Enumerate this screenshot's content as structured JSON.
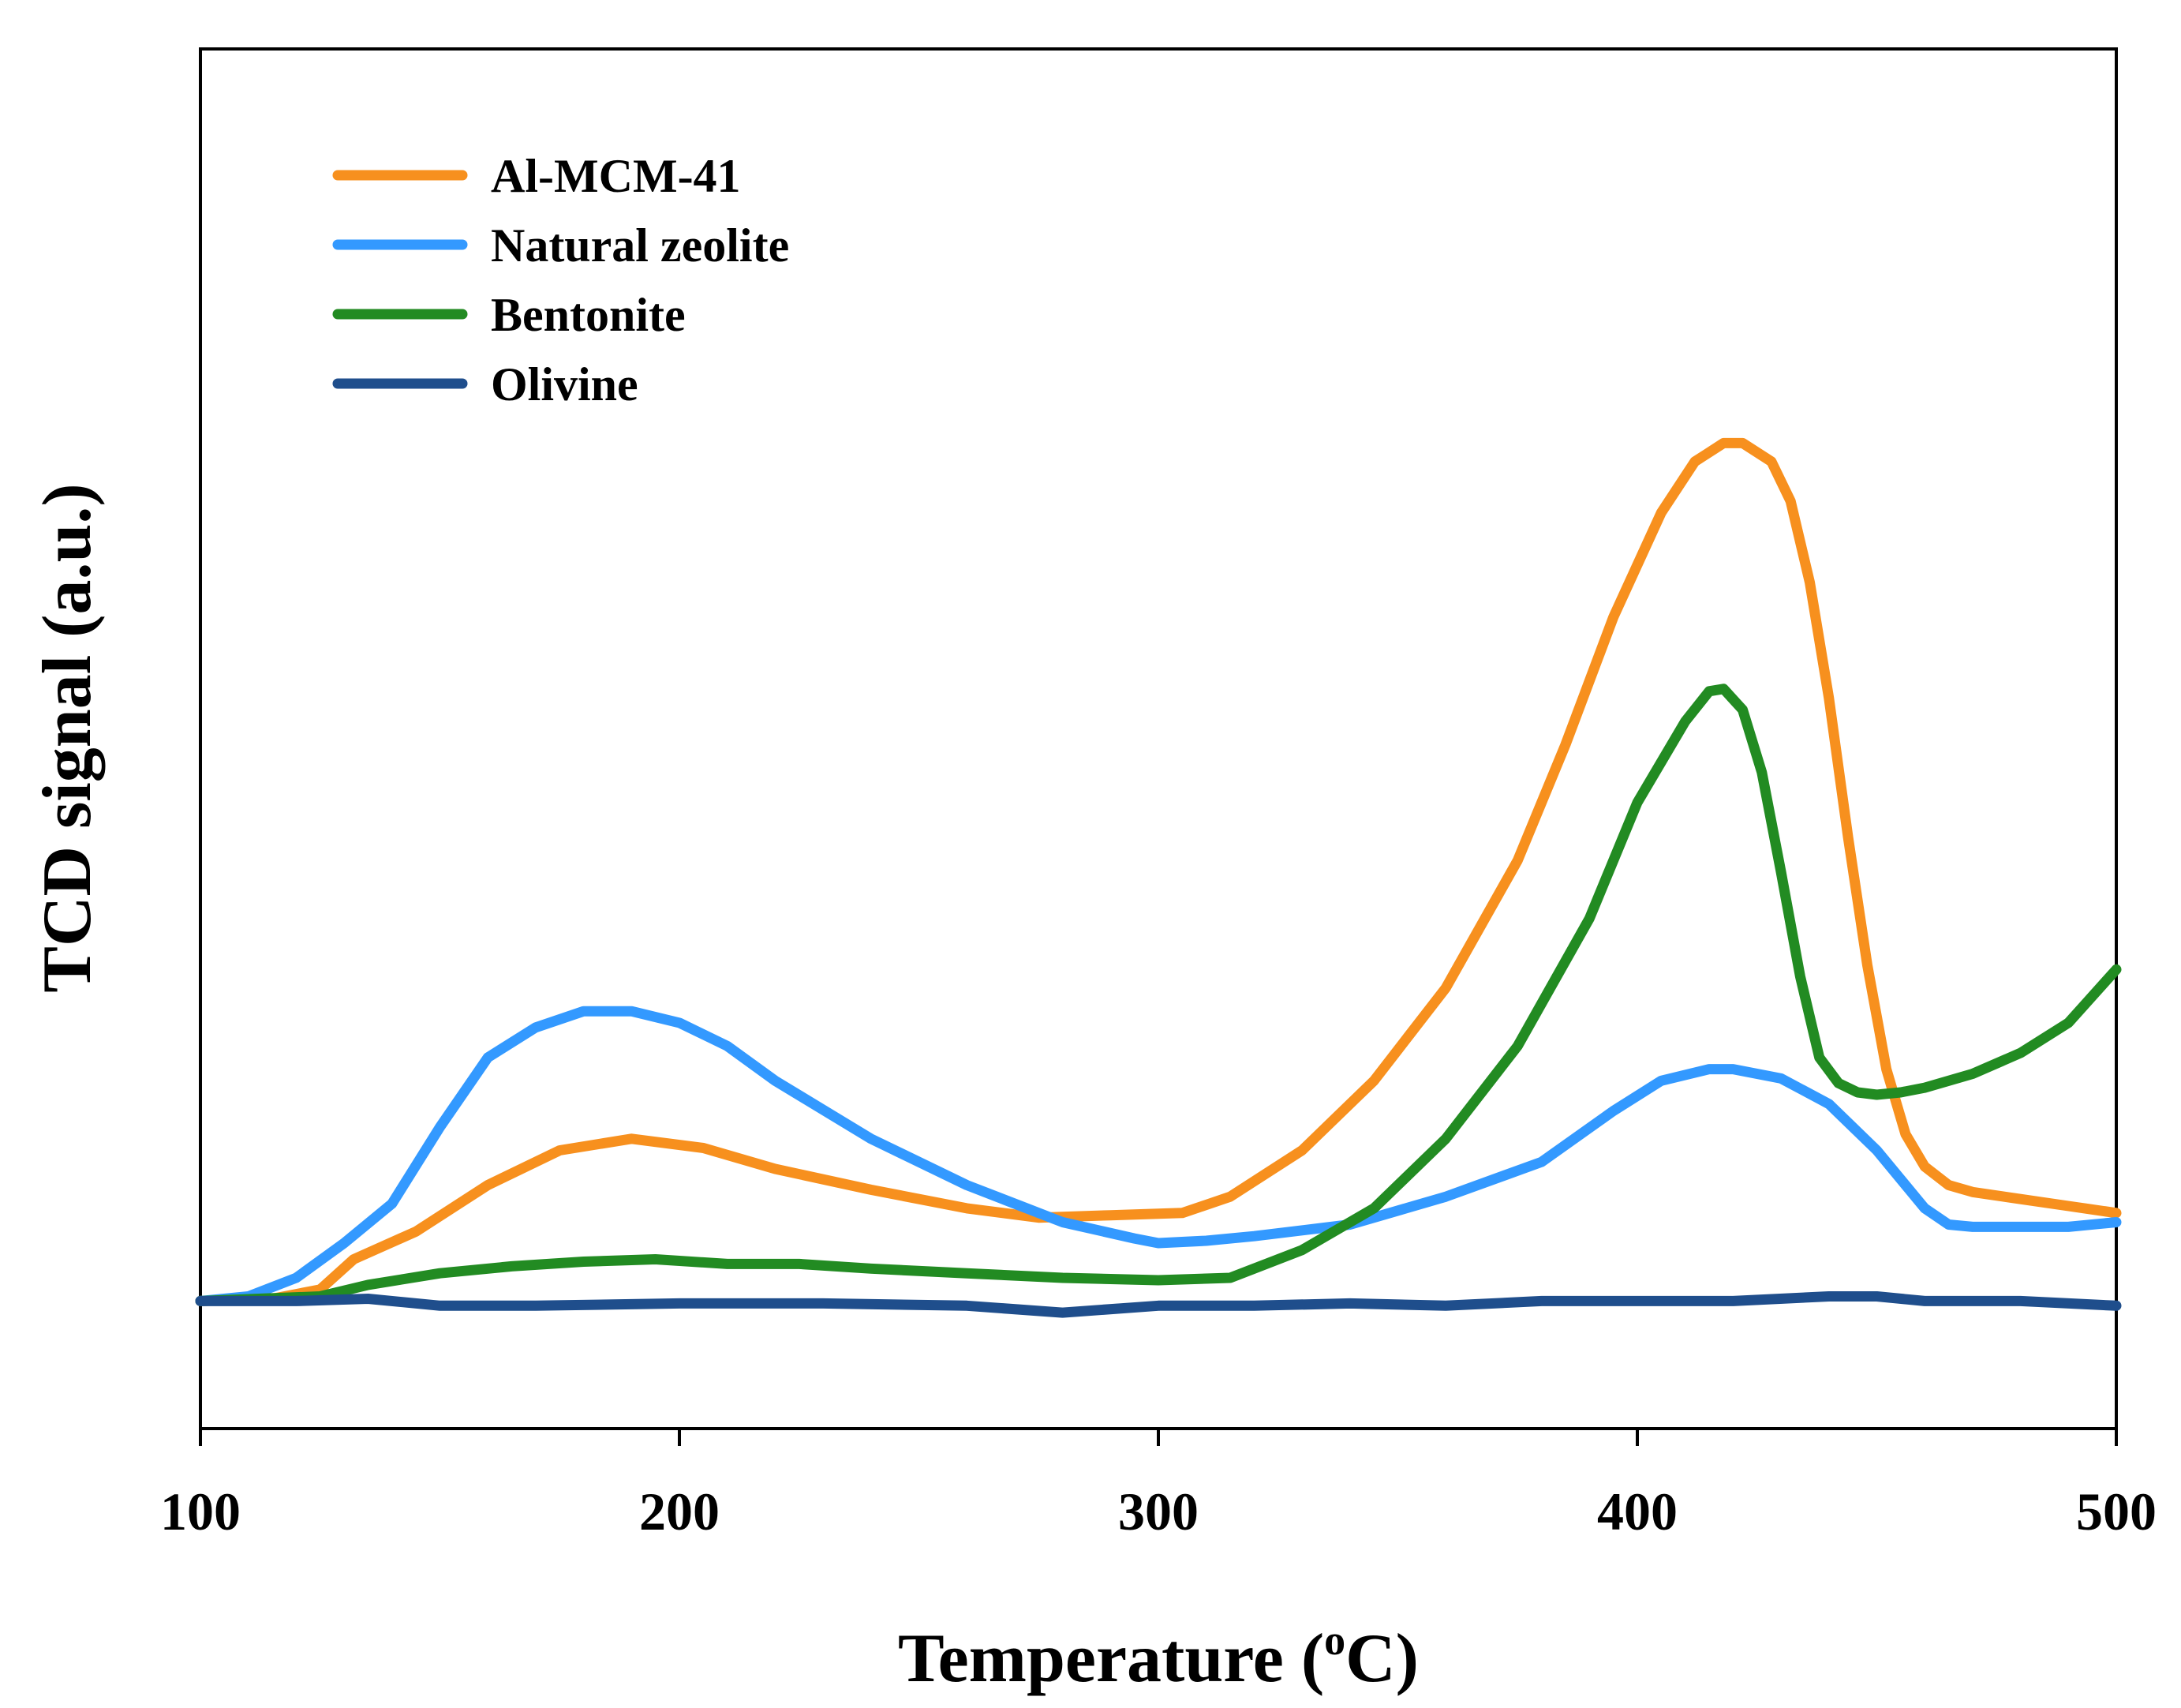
{
  "chart_data": {
    "type": "line",
    "title": "",
    "xlabel": "Temperature (",
    "xlabel_sup": "o",
    "xlabel_end": "C)",
    "ylabel": "TCD signal (a.u.)",
    "xlim": [
      100,
      500
    ],
    "ylim": [
      -0.55,
      5.4
    ],
    "xticks": [
      100,
      200,
      300,
      400,
      500
    ],
    "yticks_visible": false,
    "grid": false,
    "legend_position": "top-left",
    "series": [
      {
        "name": "Al-MCM-41",
        "color": "#F7901E",
        "x": [
          100,
          115,
          125,
          132,
          145,
          160,
          175,
          190,
          205,
          220,
          240,
          260,
          275,
          290,
          305,
          315,
          330,
          345,
          360,
          375,
          385,
          395,
          405,
          412,
          418,
          422,
          428,
          432,
          436,
          440,
          444,
          448,
          452,
          456,
          460,
          465,
          470,
          480,
          490,
          500
        ],
        "y": [
          0,
          0.01,
          0.05,
          0.18,
          0.3,
          0.5,
          0.65,
          0.7,
          0.66,
          0.57,
          0.48,
          0.4,
          0.36,
          0.37,
          0.38,
          0.45,
          0.65,
          0.95,
          1.35,
          1.9,
          2.4,
          2.95,
          3.4,
          3.62,
          3.7,
          3.7,
          3.62,
          3.45,
          3.1,
          2.6,
          2.0,
          1.45,
          1.0,
          0.72,
          0.58,
          0.5,
          0.47,
          0.44,
          0.41,
          0.38
        ]
      },
      {
        "name": "Natural zeolite",
        "color": "#3399FF",
        "x": [
          100,
          110,
          120,
          130,
          140,
          150,
          160,
          170,
          180,
          190,
          200,
          210,
          220,
          240,
          260,
          280,
          295,
          300,
          310,
          320,
          340,
          360,
          380,
          395,
          405,
          415,
          420,
          430,
          440,
          450,
          460,
          465,
          470,
          480,
          490,
          500
        ],
        "y": [
          0,
          0.02,
          0.1,
          0.25,
          0.42,
          0.75,
          1.05,
          1.18,
          1.25,
          1.25,
          1.2,
          1.1,
          0.95,
          0.7,
          0.5,
          0.34,
          0.27,
          0.25,
          0.26,
          0.28,
          0.33,
          0.45,
          0.6,
          0.82,
          0.95,
          1.0,
          1.0,
          0.96,
          0.85,
          0.65,
          0.4,
          0.33,
          0.32,
          0.32,
          0.32,
          0.34
        ]
      },
      {
        "name": "Bentonite",
        "color": "#228B22",
        "x": [
          100,
          125,
          135,
          150,
          165,
          180,
          195,
          210,
          225,
          240,
          260,
          280,
          300,
          315,
          330,
          345,
          360,
          375,
          390,
          400,
          410,
          415,
          418,
          422,
          426,
          430,
          434,
          438,
          442,
          446,
          450,
          455,
          460,
          470,
          480,
          490,
          500
        ],
        "y": [
          0,
          0.02,
          0.07,
          0.12,
          0.15,
          0.17,
          0.18,
          0.16,
          0.16,
          0.14,
          0.12,
          0.1,
          0.09,
          0.1,
          0.22,
          0.4,
          0.7,
          1.1,
          1.65,
          2.15,
          2.5,
          2.63,
          2.64,
          2.55,
          2.28,
          1.85,
          1.4,
          1.05,
          0.94,
          0.9,
          0.89,
          0.9,
          0.92,
          0.98,
          1.07,
          1.2,
          1.43
        ]
      },
      {
        "name": "Olivine",
        "color": "#1F4E8C",
        "x": [
          100,
          120,
          135,
          150,
          170,
          200,
          230,
          260,
          280,
          300,
          320,
          340,
          360,
          380,
          400,
          420,
          440,
          450,
          460,
          480,
          500
        ],
        "y": [
          0,
          0,
          0.01,
          -0.02,
          -0.02,
          -0.01,
          -0.01,
          -0.02,
          -0.05,
          -0.02,
          -0.02,
          -0.01,
          -0.02,
          0.0,
          0.0,
          0.0,
          0.02,
          0.02,
          0.0,
          0.0,
          -0.02
        ]
      }
    ]
  }
}
